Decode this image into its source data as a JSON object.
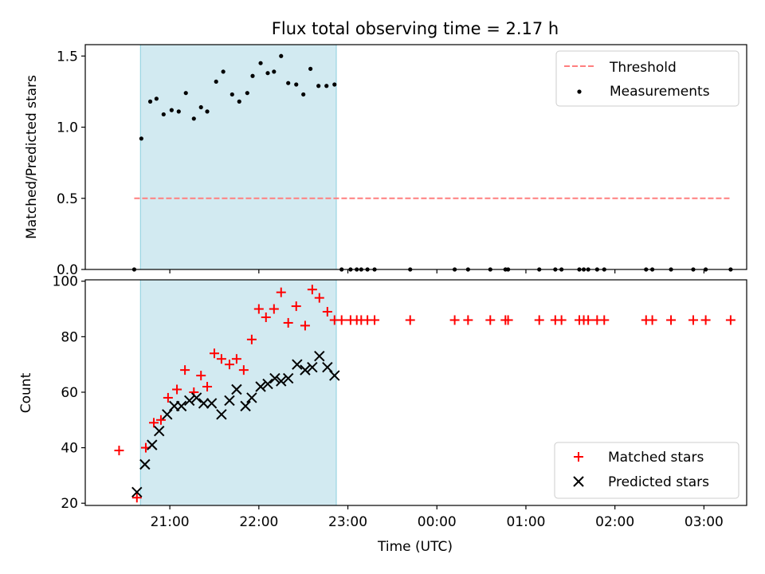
{
  "figure": {
    "title": "Flux total observing time = 2.17 h",
    "xlabel": "Time (UTC)"
  },
  "colors": {
    "shade": "#add8e6",
    "threshold": "#ff7f7f",
    "measurement": "#000000",
    "matched": "#ff0000",
    "predicted": "#000000"
  },
  "chart_data": [
    {
      "type": "scatter",
      "ylabel": "Matched/Predicted stars",
      "xlim_hours": [
        20.05,
        27.48
      ],
      "ylim": [
        0,
        1.58
      ],
      "yticks": [
        0.0,
        0.5,
        1.0,
        1.5
      ],
      "ytick_labels": [
        "0.0",
        "0.5",
        "1.0",
        "1.5"
      ],
      "shaded_interval_hours": [
        20.67,
        22.87
      ],
      "threshold": {
        "name": "Threshold",
        "y": 0.5,
        "x_range_hours": [
          20.6,
          27.3
        ]
      },
      "legend": [
        "Threshold",
        "Measurements"
      ],
      "legend_position": "top-right",
      "series": [
        {
          "name": "Measurements",
          "x": [
            20.6,
            20.68,
            20.78,
            20.85,
            20.93,
            21.02,
            21.1,
            21.18,
            21.27,
            21.35,
            21.42,
            21.52,
            21.6,
            21.7,
            21.78,
            21.87,
            21.93,
            22.02,
            22.1,
            22.17,
            22.25,
            22.33,
            22.42,
            22.5,
            22.58,
            22.67,
            22.76,
            22.85,
            22.93,
            23.03,
            23.1,
            23.15,
            23.22,
            23.3,
            23.7,
            24.2,
            24.35,
            24.6,
            24.77,
            24.8,
            25.15,
            25.33,
            25.4,
            25.6,
            25.65,
            25.7,
            25.8,
            25.88,
            26.35,
            26.42,
            26.63,
            26.88,
            27.02,
            27.3
          ],
          "y": [
            0,
            0.92,
            1.18,
            1.2,
            1.09,
            1.12,
            1.11,
            1.24,
            1.06,
            1.14,
            1.11,
            1.32,
            1.39,
            1.23,
            1.18,
            1.24,
            1.36,
            1.45,
            1.38,
            1.39,
            1.5,
            1.31,
            1.3,
            1.23,
            1.41,
            1.29,
            1.29,
            1.3,
            0,
            0,
            0,
            0,
            0,
            0,
            0,
            0,
            0,
            0,
            0,
            0,
            0,
            0,
            0,
            0,
            0,
            0,
            0,
            0,
            0,
            0,
            0,
            0,
            0,
            0
          ]
        }
      ]
    },
    {
      "type": "scatter",
      "ylabel": "Count",
      "xlim_hours": [
        20.05,
        27.48
      ],
      "ylim": [
        19.2,
        100.5
      ],
      "yticks": [
        20,
        40,
        60,
        80,
        100
      ],
      "xticks_hours": [
        21,
        22,
        23,
        24,
        25,
        26,
        27
      ],
      "xtick_labels": [
        "21:00",
        "22:00",
        "23:00",
        "00:00",
        "01:00",
        "02:00",
        "03:00"
      ],
      "shaded_interval_hours": [
        20.67,
        22.87
      ],
      "legend": [
        "Matched stars",
        "Predicted stars"
      ],
      "legend_position": "bottom-right",
      "series": [
        {
          "name": "Matched stars",
          "marker": "plus",
          "x": [
            20.43,
            20.63,
            20.73,
            20.82,
            20.9,
            20.98,
            21.08,
            21.17,
            21.27,
            21.35,
            21.42,
            21.5,
            21.58,
            21.67,
            21.75,
            21.83,
            21.92,
            22.0,
            22.08,
            22.17,
            22.25,
            22.33,
            22.42,
            22.52,
            22.6,
            22.68,
            22.77,
            22.85,
            22.93,
            23.03,
            23.1,
            23.15,
            23.22,
            23.3,
            23.7,
            24.2,
            24.35,
            24.6,
            24.77,
            24.8,
            25.15,
            25.33,
            25.4,
            25.6,
            25.65,
            25.7,
            25.8,
            25.88,
            26.35,
            26.42,
            26.63,
            26.88,
            27.02,
            27.3
          ],
          "y": [
            39,
            22,
            40,
            49,
            50,
            58,
            61,
            68,
            60,
            66,
            62,
            74,
            72,
            70,
            72,
            68,
            79,
            90,
            87,
            90,
            96,
            85,
            91,
            84,
            97,
            94,
            89,
            86,
            86,
            86,
            86,
            86,
            86,
            86,
            86,
            86,
            86,
            86,
            86,
            86,
            86,
            86,
            86,
            86,
            86,
            86,
            86,
            86,
            86,
            86,
            86,
            86,
            86,
            86
          ]
        },
        {
          "name": "Predicted stars",
          "marker": "x",
          "x": [
            20.63,
            20.72,
            20.8,
            20.88,
            20.97,
            21.05,
            21.13,
            21.22,
            21.3,
            21.38,
            21.47,
            21.58,
            21.67,
            21.75,
            21.85,
            21.92,
            22.02,
            22.1,
            22.18,
            22.25,
            22.33,
            22.43,
            22.52,
            22.6,
            22.68,
            22.77,
            22.85
          ],
          "y": [
            24,
            34,
            41,
            46,
            52,
            55,
            55,
            57,
            58,
            56,
            56,
            52,
            57,
            61,
            55,
            58,
            62,
            63,
            65,
            64,
            65,
            70,
            68,
            69,
            73,
            69,
            66
          ]
        }
      ]
    }
  ]
}
